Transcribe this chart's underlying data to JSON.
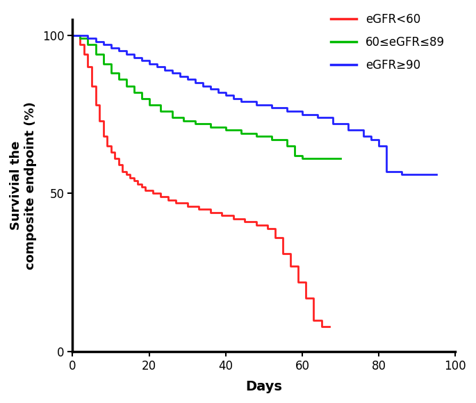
{
  "xlabel": "Days",
  "ylabel": "Survivial the\ncomposite endpoint (%)",
  "xlim": [
    0,
    100
  ],
  "ylim": [
    0,
    105
  ],
  "xticks": [
    0,
    20,
    40,
    60,
    80,
    100
  ],
  "yticks": [
    0,
    50,
    100
  ],
  "legend_labels": [
    "eGFR<60",
    "60≤eGFR≤89",
    "eGFR≥90"
  ],
  "colors": [
    "#FF2222",
    "#00BB00",
    "#2222FF"
  ],
  "red_x": [
    0,
    1,
    2,
    3,
    4,
    5,
    6,
    7,
    8,
    9,
    10,
    11,
    12,
    13,
    14,
    15,
    16,
    17,
    18,
    19,
    21,
    23,
    25,
    27,
    30,
    33,
    36,
    39,
    42,
    45,
    48,
    51,
    53,
    55,
    57,
    59,
    61,
    63,
    65,
    67
  ],
  "red_y": [
    100,
    100,
    97,
    94,
    90,
    84,
    78,
    73,
    68,
    65,
    63,
    61,
    59,
    57,
    56,
    55,
    54,
    53,
    52,
    51,
    50,
    49,
    48,
    47,
    46,
    45,
    44,
    43,
    42,
    41,
    40,
    39,
    36,
    31,
    27,
    22,
    17,
    10,
    8,
    8
  ],
  "green_x": [
    0,
    2,
    4,
    6,
    8,
    10,
    12,
    14,
    16,
    18,
    20,
    23,
    26,
    29,
    32,
    36,
    40,
    44,
    48,
    52,
    56,
    58,
    60,
    63,
    70
  ],
  "green_y": [
    100,
    99,
    97,
    94,
    91,
    88,
    86,
    84,
    82,
    80,
    78,
    76,
    74,
    73,
    72,
    71,
    70,
    69,
    68,
    67,
    65,
    62,
    61,
    61,
    61
  ],
  "blue_x": [
    0,
    2,
    4,
    6,
    8,
    10,
    12,
    14,
    16,
    18,
    20,
    22,
    24,
    26,
    28,
    30,
    32,
    34,
    36,
    38,
    40,
    42,
    44,
    46,
    48,
    50,
    52,
    54,
    56,
    60,
    62,
    64,
    68,
    72,
    76,
    78,
    80,
    82,
    84,
    86,
    95
  ],
  "blue_y": [
    100,
    100,
    99,
    98,
    97,
    96,
    95,
    94,
    93,
    92,
    91,
    90,
    89,
    88,
    87,
    86,
    85,
    84,
    83,
    82,
    81,
    80,
    79,
    79,
    78,
    78,
    77,
    77,
    76,
    75,
    75,
    74,
    72,
    70,
    68,
    67,
    65,
    57,
    57,
    56,
    56
  ]
}
